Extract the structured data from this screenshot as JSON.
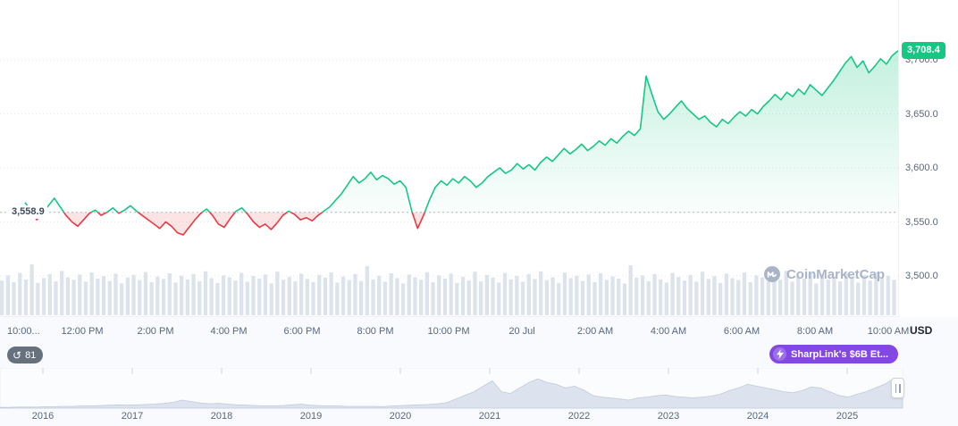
{
  "chart": {
    "current_price_badge": "3,708.4",
    "baseline_label": "3,558.9",
    "unit_label": "USD",
    "watermark_text": "CoinMarketCap",
    "y_axis_labels": [
      "3,700.0",
      "3,650.0",
      "3,600.0",
      "3,550.0",
      "3,500.0"
    ],
    "x_axis_labels": [
      "10:00...",
      "12:00 PM",
      "2:00 PM",
      "4:00 PM",
      "6:00 PM",
      "8:00 PM",
      "10:00 PM",
      "20 Jul",
      "2:00 AM",
      "4:00 AM",
      "6:00 AM",
      "8:00 AM",
      "10:00 AM"
    ]
  },
  "toolbar": {
    "history_count": "81",
    "promo_label": "SharpLink's $6B Et..."
  },
  "colors": {
    "up": "#16c784",
    "down": "#ea3943",
    "promo_purple": "#8247e5",
    "axis_text": "#58667e",
    "volume_bar": "#dde3ed",
    "navigator_fill": "#dce2ee",
    "navigator_stroke": "#c2cbdb",
    "grid": "#e6eaf2",
    "baseline": "#a8b1c2",
    "watermark": "#aab4c8"
  },
  "chart_data": {
    "type": "line",
    "title": "",
    "baseline": 3558.9,
    "last_price": 3708.4,
    "ylim": [
      3490,
      3715
    ],
    "y_ticks": [
      3700,
      3650,
      3600,
      3550,
      3500
    ],
    "x_tick_labels": [
      "10:00...",
      "12:00 PM",
      "2:00 PM",
      "4:00 PM",
      "6:00 PM",
      "8:00 PM",
      "10:00 PM",
      "20 Jul",
      "2:00 AM",
      "4:00 AM",
      "6:00 AM",
      "8:00 AM",
      "10:00 AM"
    ],
    "series": [
      {
        "name": "price",
        "values": [
          3568,
          3560,
          3552,
          3558,
          3565,
          3572,
          3564,
          3556,
          3550,
          3546,
          3552,
          3558,
          3561,
          3556,
          3559,
          3563,
          3558,
          3561,
          3565,
          3560,
          3556,
          3552,
          3548,
          3544,
          3550,
          3546,
          3540,
          3538,
          3545,
          3552,
          3558,
          3562,
          3556,
          3548,
          3545,
          3553,
          3560,
          3563,
          3557,
          3550,
          3545,
          3548,
          3543,
          3549,
          3556,
          3560,
          3557,
          3552,
          3554,
          3551,
          3556,
          3560,
          3564,
          3570,
          3576,
          3584,
          3592,
          3586,
          3590,
          3596,
          3589,
          3593,
          3590,
          3585,
          3588,
          3582,
          3560,
          3544,
          3556,
          3570,
          3582,
          3588,
          3584,
          3590,
          3586,
          3592,
          3588,
          3582,
          3586,
          3592,
          3596,
          3600,
          3595,
          3598,
          3604,
          3599,
          3603,
          3598,
          3605,
          3610,
          3606,
          3612,
          3618,
          3613,
          3617,
          3622,
          3616,
          3620,
          3625,
          3621,
          3627,
          3623,
          3629,
          3634,
          3630,
          3636,
          3685,
          3668,
          3652,
          3645,
          3650,
          3656,
          3662,
          3655,
          3650,
          3645,
          3648,
          3642,
          3638,
          3645,
          3641,
          3647,
          3652,
          3648,
          3654,
          3650,
          3657,
          3662,
          3668,
          3663,
          3670,
          3666,
          3673,
          3668,
          3677,
          3672,
          3667,
          3674,
          3681,
          3689,
          3697,
          3703,
          3693,
          3699,
          3688,
          3694,
          3701,
          3696,
          3704,
          3708.4
        ]
      }
    ],
    "volume_normalized": [
      0.42,
      0.55,
      0.38,
      0.61,
      0.45,
      0.82,
      0.36,
      0.48,
      0.58,
      0.4,
      0.66,
      0.5,
      0.44,
      0.57,
      0.39,
      0.62,
      0.47,
      0.53,
      0.41,
      0.59,
      0.35,
      0.49,
      0.56,
      0.43,
      0.63,
      0.38,
      0.52,
      0.46,
      0.6,
      0.37,
      0.54,
      0.45,
      0.58,
      0.4,
      0.65,
      0.48,
      0.36,
      0.55,
      0.5,
      0.42,
      0.61,
      0.39,
      0.53,
      0.47,
      0.57,
      0.35,
      0.64,
      0.44,
      0.51,
      0.4,
      0.59,
      0.46,
      0.38,
      0.56,
      0.49,
      0.62,
      0.37,
      0.52,
      0.43,
      0.58,
      0.41,
      0.78,
      0.45,
      0.54,
      0.39,
      0.6,
      0.48,
      0.35,
      0.57,
      0.5,
      0.44,
      0.63,
      0.38,
      0.55,
      0.47,
      0.59,
      0.36,
      0.51,
      0.42,
      0.64,
      0.4,
      0.56,
      0.49,
      0.37,
      0.61,
      0.45,
      0.53,
      0.39,
      0.58,
      0.46,
      0.65,
      0.43,
      0.5,
      0.36,
      0.62,
      0.48,
      0.54,
      0.41,
      0.57,
      0.38,
      0.6,
      0.44,
      0.52,
      0.47,
      0.35,
      0.8,
      0.49,
      0.55,
      0.4,
      0.58,
      0.45,
      0.37,
      0.61,
      0.51,
      0.42,
      0.56,
      0.39,
      0.64,
      0.46,
      0.53,
      0.36,
      0.59,
      0.48,
      0.43,
      0.62,
      0.38,
      0.55,
      0.5,
      0.41,
      0.57,
      0.44,
      0.66,
      0.39,
      0.52,
      0.47,
      0.6,
      0.35,
      0.58,
      0.45,
      0.53,
      0.4,
      0.61,
      0.49,
      0.37,
      0.56,
      0.42,
      0.63,
      0.48,
      0.54,
      0.44
    ],
    "navigator": {
      "year_labels": [
        "2016",
        "2017",
        "2018",
        "2019",
        "2020",
        "2021",
        "2022",
        "2023",
        "2024",
        "2025"
      ],
      "values": [
        0.02,
        0.02,
        0.03,
        0.03,
        0.03,
        0.04,
        0.04,
        0.05,
        0.05,
        0.06,
        0.06,
        0.07,
        0.08,
        0.09,
        0.08,
        0.09,
        0.1,
        0.11,
        0.13,
        0.16,
        0.22,
        0.18,
        0.14,
        0.12,
        0.13,
        0.11,
        0.09,
        0.08,
        0.07,
        0.06,
        0.06,
        0.07,
        0.09,
        0.11,
        0.08,
        0.07,
        0.06,
        0.06,
        0.05,
        0.05,
        0.05,
        0.05,
        0.04,
        0.06,
        0.07,
        0.08,
        0.09,
        0.1,
        0.12,
        0.15,
        0.25,
        0.35,
        0.45,
        0.6,
        0.75,
        0.45,
        0.4,
        0.55,
        0.7,
        0.8,
        0.7,
        0.65,
        0.55,
        0.6,
        0.5,
        0.35,
        0.3,
        0.28,
        0.25,
        0.22,
        0.28,
        0.3,
        0.34,
        0.36,
        0.32,
        0.3,
        0.28,
        0.3,
        0.33,
        0.38,
        0.48,
        0.55,
        0.65,
        0.6,
        0.55,
        0.5,
        0.45,
        0.42,
        0.48,
        0.58,
        0.55,
        0.45,
        0.35,
        0.3,
        0.38,
        0.45,
        0.55,
        0.65,
        0.8,
        0.72
      ]
    }
  }
}
